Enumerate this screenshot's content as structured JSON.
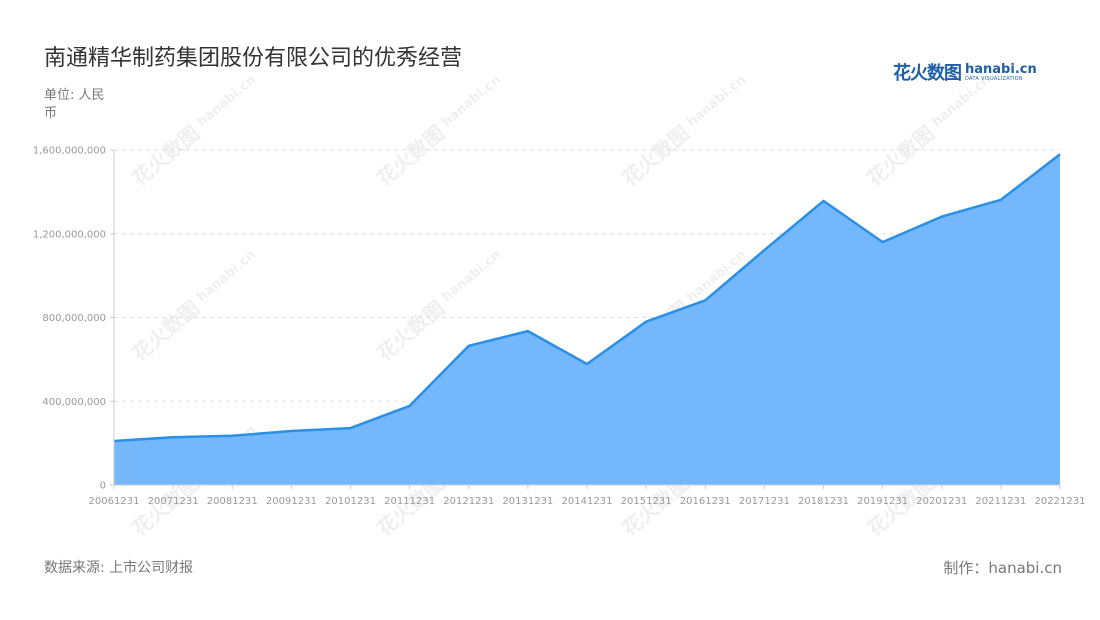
{
  "title": "南通精华制药集团股份有限公司的优秀经营",
  "unit_label": "单位: 人民币",
  "source_label": "数据来源: 上市公司财报",
  "credit_label": "制作：hanabi.cn",
  "logo": {
    "cn": "花火数图",
    "en": "hanabi.cn",
    "sub": "DATA VISUALIZATION"
  },
  "watermark": {
    "cn": "花火数图",
    "en": "hanabi.cn"
  },
  "colors": {
    "line": "#2b8fe8",
    "area": "#74b8fb",
    "grid": "#dddddd",
    "axis": "#cccccc"
  },
  "chart_data": {
    "type": "area",
    "x": [
      "20061231",
      "20071231",
      "20081231",
      "20091231",
      "20101231",
      "20111231",
      "20121231",
      "20131231",
      "20141231",
      "20151231",
      "20161231",
      "20171231",
      "20181231",
      "20191231",
      "20201231",
      "20211231",
      "20221231"
    ],
    "series": [
      {
        "values": [
          210000000,
          228000000,
          235000000,
          258000000,
          272000000,
          378000000,
          665000000,
          735000000,
          578000000,
          780000000,
          882000000,
          1122000000,
          1357000000,
          1160000000,
          1282000000,
          1362000000,
          1580000000
        ]
      }
    ],
    "y_ticks": [
      "0",
      "400,000,000",
      "800,000,000",
      "1,200,000,000",
      "1,600,000,000"
    ],
    "y_tick_values": [
      0,
      400000000,
      800000000,
      1200000000,
      1600000000
    ],
    "ylim": [
      0,
      1600000000
    ],
    "grid": true,
    "legend": "none"
  }
}
